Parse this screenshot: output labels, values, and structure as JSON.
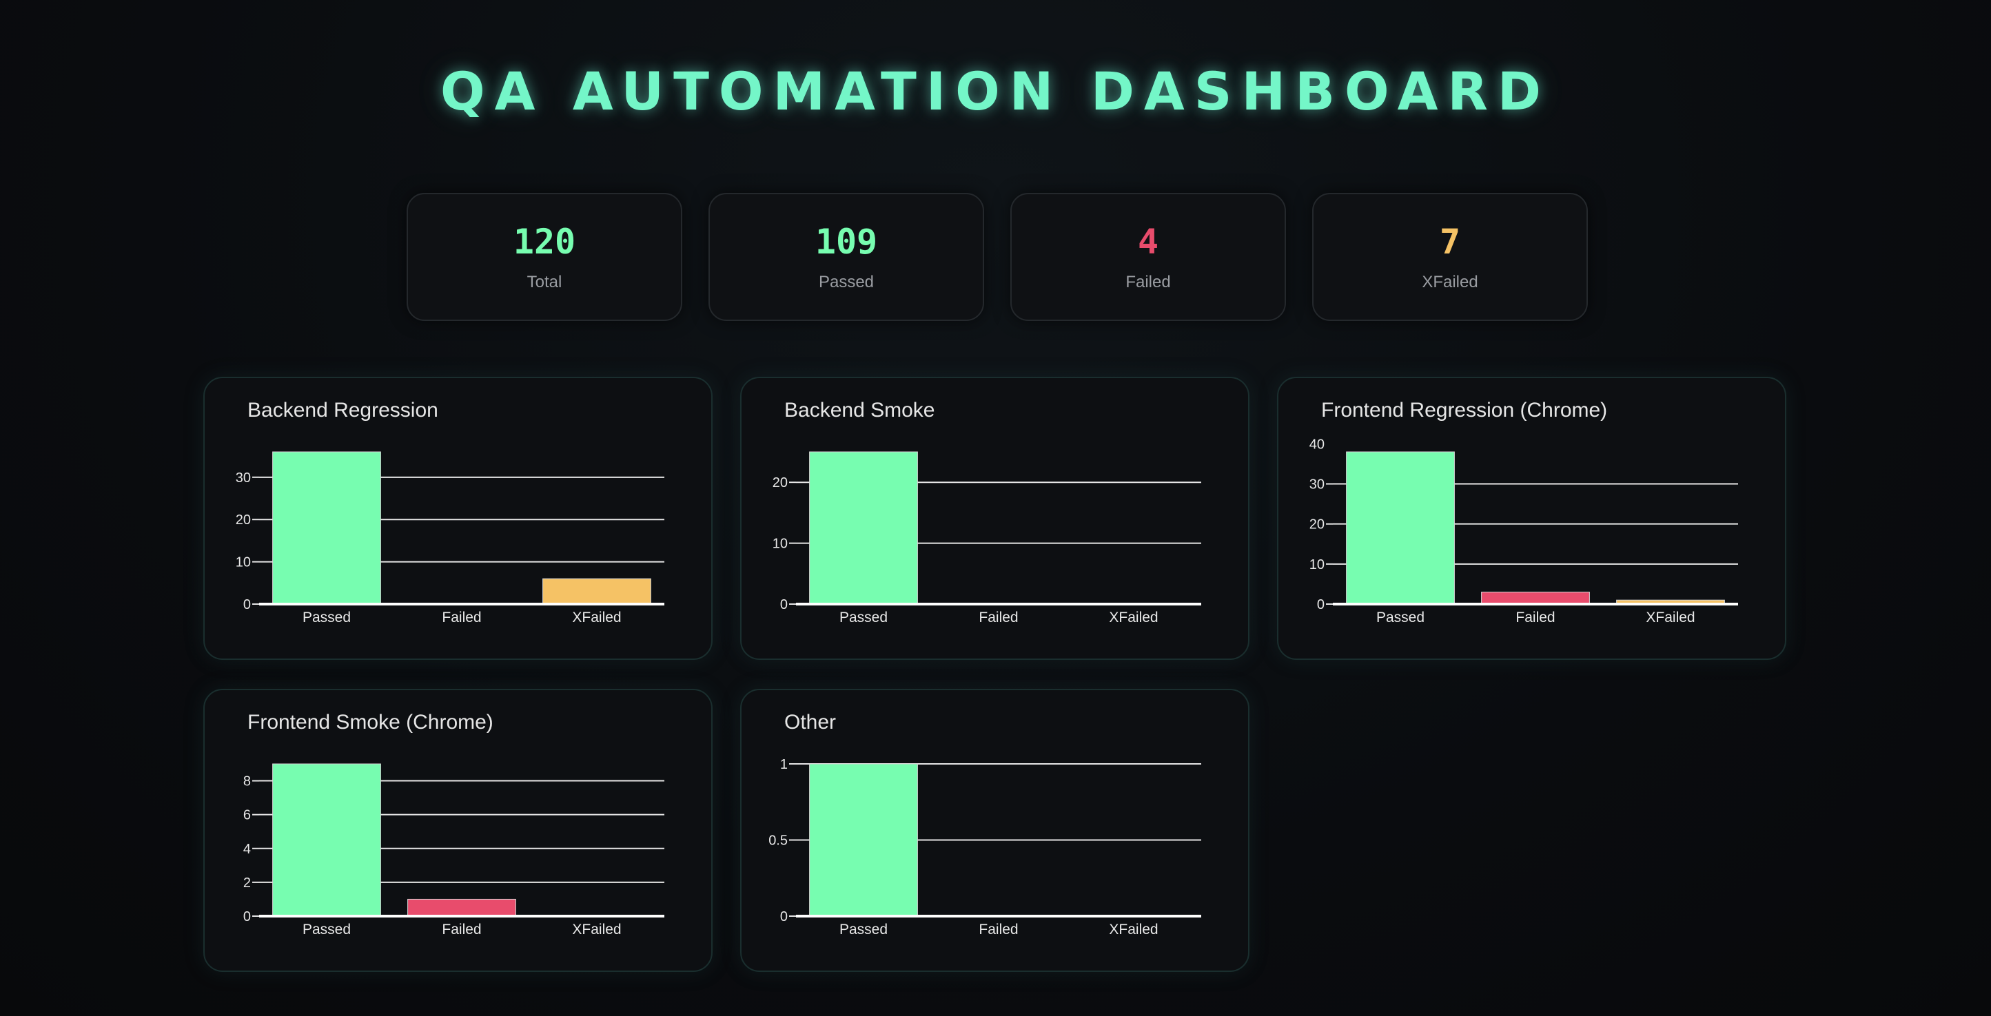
{
  "header": {
    "title": "QA AUTOMATION DASHBOARD"
  },
  "colors": {
    "passed": "#77fdb0",
    "failed": "#e84c6c",
    "xfailed": "#f5c265",
    "title": "#74f6c8"
  },
  "stats": [
    {
      "value": "120",
      "label": "Total",
      "color": "#77fdb0"
    },
    {
      "value": "109",
      "label": "Passed",
      "color": "#77fdb0"
    },
    {
      "value": "4",
      "label": "Failed",
      "color": "#e84c6c"
    },
    {
      "value": "7",
      "label": "XFailed",
      "color": "#f5c265"
    }
  ],
  "chart_data": [
    {
      "type": "bar",
      "title": "Backend Regression",
      "categories": [
        "Passed",
        "Failed",
        "XFailed"
      ],
      "values": [
        36,
        0,
        6
      ],
      "ylim": [
        0,
        36
      ],
      "yticks": [
        0,
        10,
        20,
        30
      ],
      "grid": true
    },
    {
      "type": "bar",
      "title": "Backend Smoke",
      "categories": [
        "Passed",
        "Failed",
        "XFailed"
      ],
      "values": [
        25,
        0,
        0
      ],
      "ylim": [
        0,
        25
      ],
      "yticks": [
        0,
        10,
        20
      ],
      "grid": true
    },
    {
      "type": "bar",
      "title": "Frontend Regression (Chrome)",
      "categories": [
        "Passed",
        "Failed",
        "XFailed"
      ],
      "values": [
        38,
        3,
        1
      ],
      "ylim": [
        0,
        38
      ],
      "yticks": [
        0,
        10,
        20,
        30,
        40
      ],
      "grid": true
    },
    {
      "type": "bar",
      "title": "Frontend Smoke (Chrome)",
      "categories": [
        "Passed",
        "Failed",
        "XFailed"
      ],
      "values": [
        9,
        1,
        0
      ],
      "ylim": [
        0,
        9
      ],
      "yticks": [
        0,
        2,
        4,
        6,
        8
      ],
      "grid": true
    },
    {
      "type": "bar",
      "title": "Other",
      "categories": [
        "Passed",
        "Failed",
        "XFailed"
      ],
      "values": [
        1,
        0,
        0
      ],
      "ylim": [
        0,
        1
      ],
      "yticks": [
        0,
        0.5,
        1
      ],
      "grid": true
    }
  ]
}
